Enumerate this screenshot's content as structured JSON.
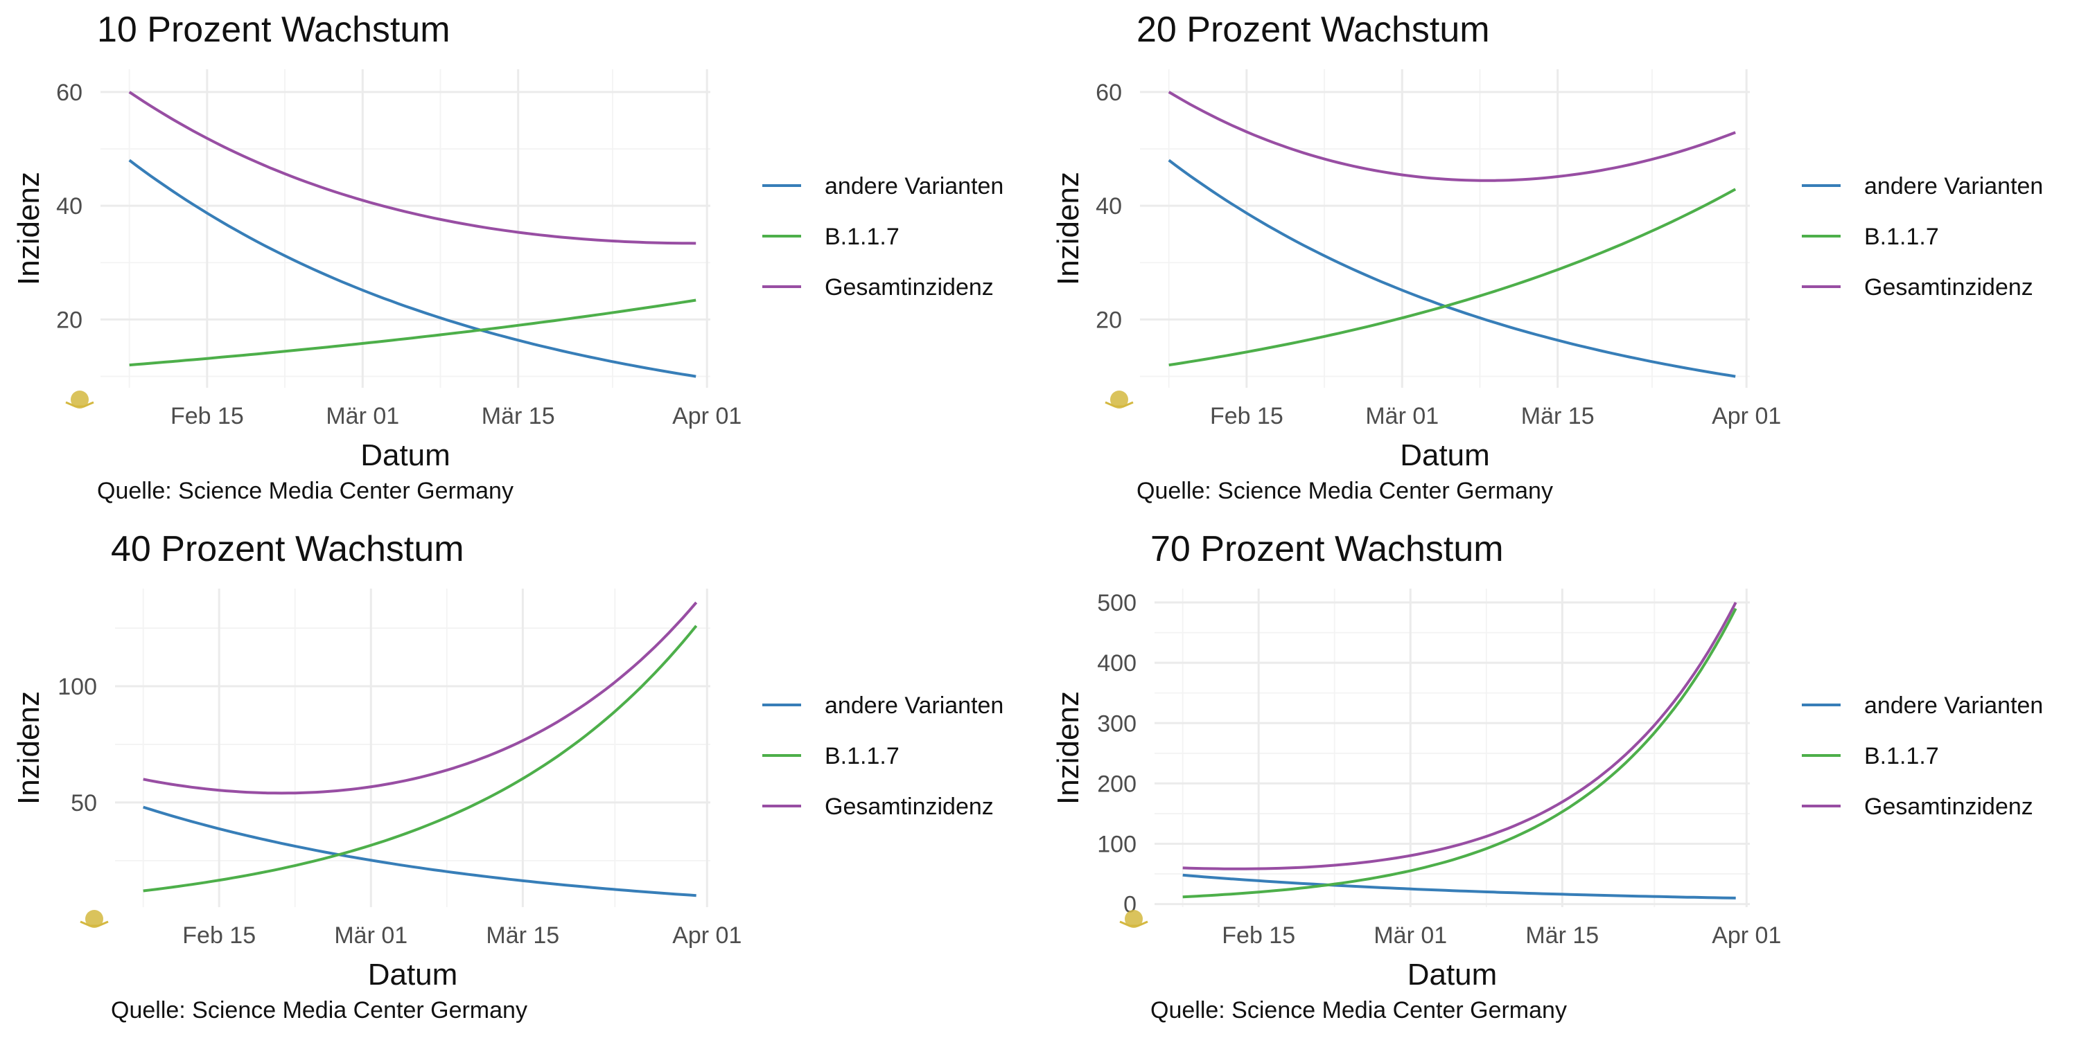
{
  "colors": {
    "andere Varianten": "#377EB8",
    "B.1.1.7": "#4DAF4A",
    "Gesamtinzidenz": "#984EA3",
    "logo": "#d4b840"
  },
  "chart_data": [
    {
      "type": "line",
      "title": "10 Prozent Wachstum",
      "xlabel": "Datum",
      "ylabel": "Inzidenz",
      "caption": "Quelle: Science Media Center Germany",
      "x_range": [
        "2021-02-08",
        "2021-03-31"
      ],
      "x_ticks": [
        {
          "date": "2021-02-15",
          "label": "Feb 15"
        },
        {
          "date": "2021-03-01",
          "label": "Mär 01"
        },
        {
          "date": "2021-03-15",
          "label": "Mär 15"
        },
        {
          "date": "2021-04-01",
          "label": "Apr 01"
        }
      ],
      "ylim": [
        8,
        64
      ],
      "y_ticks": [
        20,
        40,
        60
      ],
      "legend_position": "right",
      "grid": true,
      "series": [
        {
          "name": "andere Varianten",
          "start": 48,
          "end": 10
        },
        {
          "name": "B.1.1.7",
          "start": 12,
          "end": 23.4
        },
        {
          "name": "Gesamtinzidenz",
          "start": 60,
          "end": 33.4
        }
      ]
    },
    {
      "type": "line",
      "title": "20 Prozent Wachstum",
      "xlabel": "Datum",
      "ylabel": "Inzidenz",
      "caption": "Quelle: Science Media Center Germany",
      "x_range": [
        "2021-02-08",
        "2021-03-31"
      ],
      "x_ticks": [
        {
          "date": "2021-02-15",
          "label": "Feb 15"
        },
        {
          "date": "2021-03-01",
          "label": "Mär 01"
        },
        {
          "date": "2021-03-15",
          "label": "Mär 15"
        },
        {
          "date": "2021-04-01",
          "label": "Apr 01"
        }
      ],
      "ylim": [
        8,
        64
      ],
      "y_ticks": [
        20,
        40,
        60
      ],
      "legend_position": "right",
      "grid": true,
      "series": [
        {
          "name": "andere Varianten",
          "start": 48,
          "end": 10
        },
        {
          "name": "B.1.1.7",
          "start": 12,
          "end": 42.9
        },
        {
          "name": "Gesamtinzidenz",
          "start": 60,
          "end": 52.9
        }
      ]
    },
    {
      "type": "line",
      "title": "40 Prozent Wachstum",
      "xlabel": "Datum",
      "ylabel": "Inzidenz",
      "caption": "Quelle: Science Media Center Germany",
      "x_range": [
        "2021-02-08",
        "2021-03-31"
      ],
      "x_ticks": [
        {
          "date": "2021-02-15",
          "label": "Feb 15"
        },
        {
          "date": "2021-03-01",
          "label": "Mär 01"
        },
        {
          "date": "2021-03-15",
          "label": "Mär 15"
        },
        {
          "date": "2021-04-01",
          "label": "Apr 01"
        }
      ],
      "ylim": [
        5,
        142
      ],
      "y_ticks": [
        50,
        100
      ],
      "legend_position": "right",
      "grid": true,
      "series": [
        {
          "name": "andere Varianten",
          "start": 48,
          "end": 10
        },
        {
          "name": "B.1.1.7",
          "start": 12,
          "end": 126
        },
        {
          "name": "Gesamtinzidenz",
          "start": 60,
          "end": 136
        }
      ]
    },
    {
      "type": "line",
      "title": "70 Prozent Wachstum",
      "xlabel": "Datum",
      "ylabel": "Inzidenz",
      "caption": "Quelle: Science Media Center Germany",
      "x_range": [
        "2021-02-08",
        "2021-03-31"
      ],
      "x_ticks": [
        {
          "date": "2021-02-15",
          "label": "Feb 15"
        },
        {
          "date": "2021-03-01",
          "label": "Mär 01"
        },
        {
          "date": "2021-03-15",
          "label": "Mär 15"
        },
        {
          "date": "2021-04-01",
          "label": "Apr 01"
        }
      ],
      "ylim": [
        -5,
        523
      ],
      "y_ticks": [
        0,
        100,
        200,
        300,
        400,
        500
      ],
      "legend_position": "right",
      "grid": true,
      "series": [
        {
          "name": "andere Varianten",
          "start": 48,
          "end": 10
        },
        {
          "name": "B.1.1.7",
          "start": 12,
          "end": 490
        },
        {
          "name": "Gesamtinzidenz",
          "start": 60,
          "end": 500
        }
      ]
    }
  ]
}
